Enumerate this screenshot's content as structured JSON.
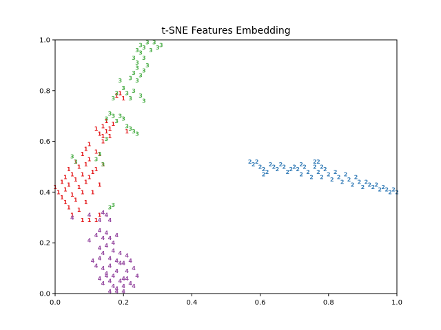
{
  "chart_data": {
    "type": "scatter",
    "title": "t-SNE Features Embedding",
    "xlabel": "",
    "ylabel": "",
    "xlim": [
      0,
      1
    ],
    "ylim": [
      0,
      1
    ],
    "x_ticks": [
      "0.0",
      "0.2",
      "0.4",
      "0.6",
      "0.8",
      "1.0"
    ],
    "y_ticks": [
      "0.0",
      "0.2",
      "0.4",
      "0.6",
      "0.8",
      "1.0"
    ],
    "grid": false,
    "legend": "none",
    "marker": "text-digit",
    "series": [
      {
        "label": "1",
        "color": "#e41a1c",
        "points": [
          [
            0.0,
            0.42
          ],
          [
            0.01,
            0.4
          ],
          [
            0.02,
            0.44
          ],
          [
            0.02,
            0.38
          ],
          [
            0.03,
            0.46
          ],
          [
            0.03,
            0.36
          ],
          [
            0.03,
            0.41
          ],
          [
            0.04,
            0.49
          ],
          [
            0.04,
            0.43
          ],
          [
            0.04,
            0.34
          ],
          [
            0.05,
            0.47
          ],
          [
            0.05,
            0.39
          ],
          [
            0.05,
            0.31
          ],
          [
            0.06,
            0.52
          ],
          [
            0.06,
            0.45
          ],
          [
            0.06,
            0.37
          ],
          [
            0.07,
            0.5
          ],
          [
            0.07,
            0.42
          ],
          [
            0.07,
            0.33
          ],
          [
            0.08,
            0.55
          ],
          [
            0.08,
            0.47
          ],
          [
            0.08,
            0.4
          ],
          [
            0.08,
            0.29
          ],
          [
            0.09,
            0.57
          ],
          [
            0.09,
            0.51
          ],
          [
            0.09,
            0.44
          ],
          [
            0.09,
            0.36
          ],
          [
            0.1,
            0.59
          ],
          [
            0.1,
            0.53
          ],
          [
            0.1,
            0.46
          ],
          [
            0.1,
            0.29
          ],
          [
            0.11,
            0.48
          ],
          [
            0.11,
            0.4
          ],
          [
            0.12,
            0.56
          ],
          [
            0.12,
            0.49
          ],
          [
            0.12,
            0.29
          ],
          [
            0.13,
            0.55
          ],
          [
            0.13,
            0.43
          ],
          [
            0.14,
            0.51
          ],
          [
            0.13,
            0.31
          ],
          [
            0.12,
            0.65
          ],
          [
            0.13,
            0.63
          ],
          [
            0.14,
            0.66
          ],
          [
            0.14,
            0.62
          ],
          [
            0.15,
            0.64
          ],
          [
            0.15,
            0.68
          ],
          [
            0.16,
            0.65
          ],
          [
            0.16,
            0.62
          ],
          [
            0.17,
            0.67
          ],
          [
            0.14,
            0.6
          ],
          [
            0.18,
            0.78
          ],
          [
            0.19,
            0.79
          ],
          [
            0.2,
            0.77
          ],
          [
            0.21,
            0.64
          ]
        ]
      },
      {
        "label": "2",
        "color": "#377eb8",
        "points": [
          [
            0.57,
            0.52
          ],
          [
            0.58,
            0.51
          ],
          [
            0.59,
            0.52
          ],
          [
            0.6,
            0.5
          ],
          [
            0.61,
            0.49
          ],
          [
            0.61,
            0.47
          ],
          [
            0.62,
            0.48
          ],
          [
            0.63,
            0.51
          ],
          [
            0.64,
            0.5
          ],
          [
            0.65,
            0.49
          ],
          [
            0.66,
            0.51
          ],
          [
            0.67,
            0.5
          ],
          [
            0.68,
            0.48
          ],
          [
            0.69,
            0.49
          ],
          [
            0.7,
            0.5
          ],
          [
            0.71,
            0.49
          ],
          [
            0.72,
            0.47
          ],
          [
            0.72,
            0.51
          ],
          [
            0.73,
            0.5
          ],
          [
            0.74,
            0.48
          ],
          [
            0.75,
            0.46
          ],
          [
            0.76,
            0.52
          ],
          [
            0.76,
            0.5
          ],
          [
            0.77,
            0.48
          ],
          [
            0.77,
            0.52
          ],
          [
            0.78,
            0.5
          ],
          [
            0.78,
            0.46
          ],
          [
            0.79,
            0.49
          ],
          [
            0.8,
            0.47
          ],
          [
            0.81,
            0.45
          ],
          [
            0.82,
            0.48
          ],
          [
            0.83,
            0.46
          ],
          [
            0.84,
            0.44
          ],
          [
            0.85,
            0.47
          ],
          [
            0.86,
            0.45
          ],
          [
            0.87,
            0.43
          ],
          [
            0.88,
            0.46
          ],
          [
            0.89,
            0.44
          ],
          [
            0.9,
            0.42
          ],
          [
            0.91,
            0.44
          ],
          [
            0.92,
            0.43
          ],
          [
            0.93,
            0.42
          ],
          [
            0.94,
            0.43
          ],
          [
            0.95,
            0.41
          ],
          [
            0.96,
            0.42
          ],
          [
            0.97,
            0.41
          ],
          [
            0.98,
            0.4
          ],
          [
            0.99,
            0.41
          ],
          [
            1.0,
            0.4
          ]
        ]
      },
      {
        "label": "3",
        "color": "#4daf4a",
        "points": [
          [
            0.05,
            0.54
          ],
          [
            0.06,
            0.52
          ],
          [
            0.12,
            0.53
          ],
          [
            0.13,
            0.55
          ],
          [
            0.14,
            0.51
          ],
          [
            0.15,
            0.69
          ],
          [
            0.16,
            0.71
          ],
          [
            0.17,
            0.7
          ],
          [
            0.18,
            0.68
          ],
          [
            0.19,
            0.7
          ],
          [
            0.2,
            0.69
          ],
          [
            0.21,
            0.66
          ],
          [
            0.22,
            0.65
          ],
          [
            0.23,
            0.64
          ],
          [
            0.24,
            0.63
          ],
          [
            0.17,
            0.77
          ],
          [
            0.18,
            0.79
          ],
          [
            0.19,
            0.84
          ],
          [
            0.2,
            0.81
          ],
          [
            0.21,
            0.79
          ],
          [
            0.22,
            0.77
          ],
          [
            0.23,
            0.8
          ],
          [
            0.24,
            0.84
          ],
          [
            0.25,
            0.78
          ],
          [
            0.26,
            0.76
          ],
          [
            0.22,
            0.85
          ],
          [
            0.23,
            0.87
          ],
          [
            0.24,
            0.89
          ],
          [
            0.25,
            0.86
          ],
          [
            0.26,
            0.88
          ],
          [
            0.23,
            0.93
          ],
          [
            0.24,
            0.91
          ],
          [
            0.25,
            0.95
          ],
          [
            0.26,
            0.93
          ],
          [
            0.27,
            0.9
          ],
          [
            0.24,
            0.96
          ],
          [
            0.25,
            0.98
          ],
          [
            0.26,
            0.97
          ],
          [
            0.27,
            0.99
          ],
          [
            0.28,
            0.96
          ],
          [
            0.29,
            0.99
          ],
          [
            0.3,
            0.97
          ],
          [
            0.31,
            0.98
          ],
          [
            0.16,
            0.34
          ],
          [
            0.17,
            0.35
          ],
          [
            0.15,
            0.61
          ]
        ]
      },
      {
        "label": "4",
        "color": "#984ea3",
        "points": [
          [
            0.05,
            0.3
          ],
          [
            0.1,
            0.31
          ],
          [
            0.13,
            0.29
          ],
          [
            0.14,
            0.32
          ],
          [
            0.15,
            0.31
          ],
          [
            0.16,
            0.29
          ],
          [
            0.1,
            0.21
          ],
          [
            0.12,
            0.23
          ],
          [
            0.13,
            0.25
          ],
          [
            0.14,
            0.22
          ],
          [
            0.15,
            0.24
          ],
          [
            0.16,
            0.22
          ],
          [
            0.17,
            0.2
          ],
          [
            0.18,
            0.23
          ],
          [
            0.13,
            0.18
          ],
          [
            0.14,
            0.16
          ],
          [
            0.15,
            0.19
          ],
          [
            0.16,
            0.14
          ],
          [
            0.17,
            0.17
          ],
          [
            0.18,
            0.13
          ],
          [
            0.19,
            0.16
          ],
          [
            0.2,
            0.12
          ],
          [
            0.21,
            0.15
          ],
          [
            0.11,
            0.13
          ],
          [
            0.12,
            0.11
          ],
          [
            0.13,
            0.14
          ],
          [
            0.14,
            0.1
          ],
          [
            0.15,
            0.08
          ],
          [
            0.16,
            0.11
          ],
          [
            0.17,
            0.07
          ],
          [
            0.18,
            0.09
          ],
          [
            0.19,
            0.12
          ],
          [
            0.2,
            0.06
          ],
          [
            0.21,
            0.09
          ],
          [
            0.22,
            0.13
          ],
          [
            0.23,
            0.1
          ],
          [
            0.24,
            0.07
          ],
          [
            0.13,
            0.06
          ],
          [
            0.14,
            0.04
          ],
          [
            0.15,
            0.07
          ],
          [
            0.16,
            0.05
          ],
          [
            0.17,
            0.03
          ],
          [
            0.18,
            0.02
          ],
          [
            0.19,
            0.05
          ],
          [
            0.2,
            0.03
          ],
          [
            0.21,
            0.06
          ],
          [
            0.22,
            0.04
          ],
          [
            0.16,
            0.01
          ],
          [
            0.18,
            0.01
          ],
          [
            0.2,
            0.01
          ],
          [
            0.23,
            0.03
          ]
        ]
      }
    ]
  }
}
